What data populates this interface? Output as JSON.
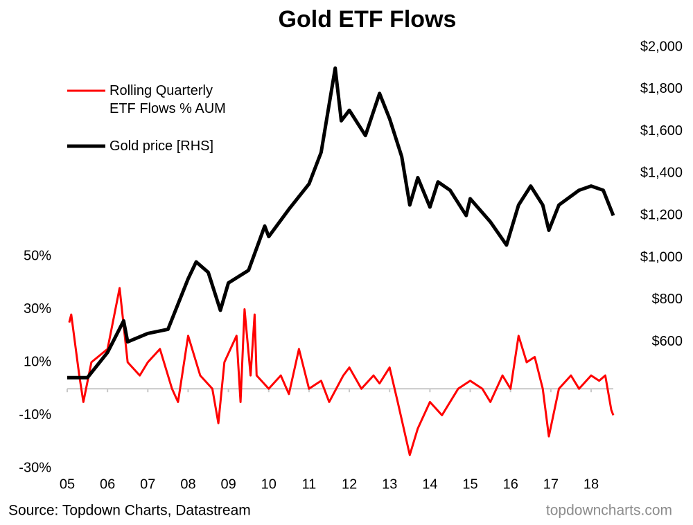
{
  "chart_data": {
    "type": "line",
    "title": "Gold ETF Flows",
    "source": "Source: Topdown Charts, Datastream",
    "watermark": "topdowncharts.com",
    "xlim": [
      2005,
      2018.55
    ],
    "xticks": [
      {
        "value": 2005,
        "label": "05"
      },
      {
        "value": 2006,
        "label": "06"
      },
      {
        "value": 2007,
        "label": "07"
      },
      {
        "value": 2008,
        "label": "08"
      },
      {
        "value": 2009,
        "label": "09"
      },
      {
        "value": 2010,
        "label": "10"
      },
      {
        "value": 2011,
        "label": "11"
      },
      {
        "value": 2012,
        "label": "12"
      },
      {
        "value": 2013,
        "label": "13"
      },
      {
        "value": 2014,
        "label": "14"
      },
      {
        "value": 2015,
        "label": "15"
      },
      {
        "value": 2016,
        "label": "16"
      },
      {
        "value": 2017,
        "label": "17"
      },
      {
        "value": 2018,
        "label": "18"
      }
    ],
    "ylim": [
      -30,
      50
    ],
    "yticks": [
      {
        "value": -30,
        "label": "-30%"
      },
      {
        "value": -10,
        "label": "-10%"
      },
      {
        "value": 10,
        "label": "10%"
      },
      {
        "value": 30,
        "label": "30%"
      },
      {
        "value": 50,
        "label": "50%"
      }
    ],
    "y2lim": [
      0,
      2000
    ],
    "y2ticks": [
      {
        "value": 600,
        "label": "$600"
      },
      {
        "value": 800,
        "label": "$800"
      },
      {
        "value": 1000,
        "label": "$1,000"
      },
      {
        "value": 1200,
        "label": "$1,200"
      },
      {
        "value": 1400,
        "label": "$1,400"
      },
      {
        "value": 1600,
        "label": "$1,600"
      },
      {
        "value": 1800,
        "label": "$1,800"
      },
      {
        "value": 2000,
        "label": "$2,000"
      }
    ],
    "legend": "top-left",
    "series": [
      {
        "name": "Rolling Quarterly\nETF Flows % AUM",
        "color": "#ff0000",
        "axis": "y",
        "x": [
          2005.05,
          2005.1,
          2005.3,
          2005.4,
          2005.6,
          2006.0,
          2006.3,
          2006.5,
          2006.8,
          2007.0,
          2007.3,
          2007.6,
          2007.75,
          2008.0,
          2008.3,
          2008.6,
          2008.75,
          2008.9,
          2009.2,
          2009.3,
          2009.4,
          2009.55,
          2009.65,
          2009.7,
          2010.0,
          2010.3,
          2010.5,
          2010.75,
          2011.0,
          2011.3,
          2011.5,
          2011.85,
          2012.0,
          2012.3,
          2012.6,
          2012.75,
          2013.0,
          2013.2,
          2013.5,
          2013.7,
          2014.0,
          2014.3,
          2014.7,
          2015.0,
          2015.3,
          2015.5,
          2015.8,
          2016.0,
          2016.2,
          2016.4,
          2016.6,
          2016.8,
          2016.95,
          2017.2,
          2017.5,
          2017.7,
          2018.0,
          2018.2,
          2018.35,
          2018.5,
          2018.55
        ],
        "values": [
          25,
          28,
          5,
          -5,
          10,
          15,
          38,
          10,
          5,
          10,
          15,
          0,
          -5,
          20,
          5,
          0,
          -13,
          10,
          20,
          -5,
          30,
          5,
          28,
          5,
          0,
          5,
          -2,
          15,
          0,
          3,
          -5,
          5,
          8,
          0,
          5,
          2,
          8,
          -5,
          -25,
          -15,
          -5,
          -10,
          0,
          3,
          0,
          -5,
          5,
          0,
          20,
          10,
          12,
          0,
          -18,
          0,
          5,
          0,
          5,
          3,
          5,
          -8,
          -10
        ]
      },
      {
        "name": "Gold price [RHS]",
        "color": "#000000",
        "axis": "y2",
        "x": [
          2005.0,
          2005.5,
          2006.0,
          2006.4,
          2006.5,
          2007.0,
          2007.5,
          2008.0,
          2008.2,
          2008.5,
          2008.8,
          2009.0,
          2009.5,
          2009.9,
          2010.0,
          2010.5,
          2011.0,
          2011.3,
          2011.65,
          2011.8,
          2012.0,
          2012.4,
          2012.75,
          2013.0,
          2013.3,
          2013.5,
          2013.7,
          2014.0,
          2014.2,
          2014.5,
          2014.9,
          2015.0,
          2015.5,
          2015.9,
          2016.2,
          2016.5,
          2016.8,
          2016.95,
          2017.2,
          2017.7,
          2018.0,
          2018.3,
          2018.55
        ],
        "values": [
          430,
          430,
          550,
          700,
          600,
          640,
          660,
          900,
          980,
          930,
          750,
          880,
          940,
          1150,
          1100,
          1230,
          1350,
          1500,
          1900,
          1650,
          1700,
          1580,
          1780,
          1660,
          1480,
          1250,
          1380,
          1240,
          1360,
          1320,
          1200,
          1280,
          1170,
          1060,
          1250,
          1340,
          1250,
          1130,
          1250,
          1320,
          1340,
          1320,
          1200
        ]
      }
    ]
  }
}
